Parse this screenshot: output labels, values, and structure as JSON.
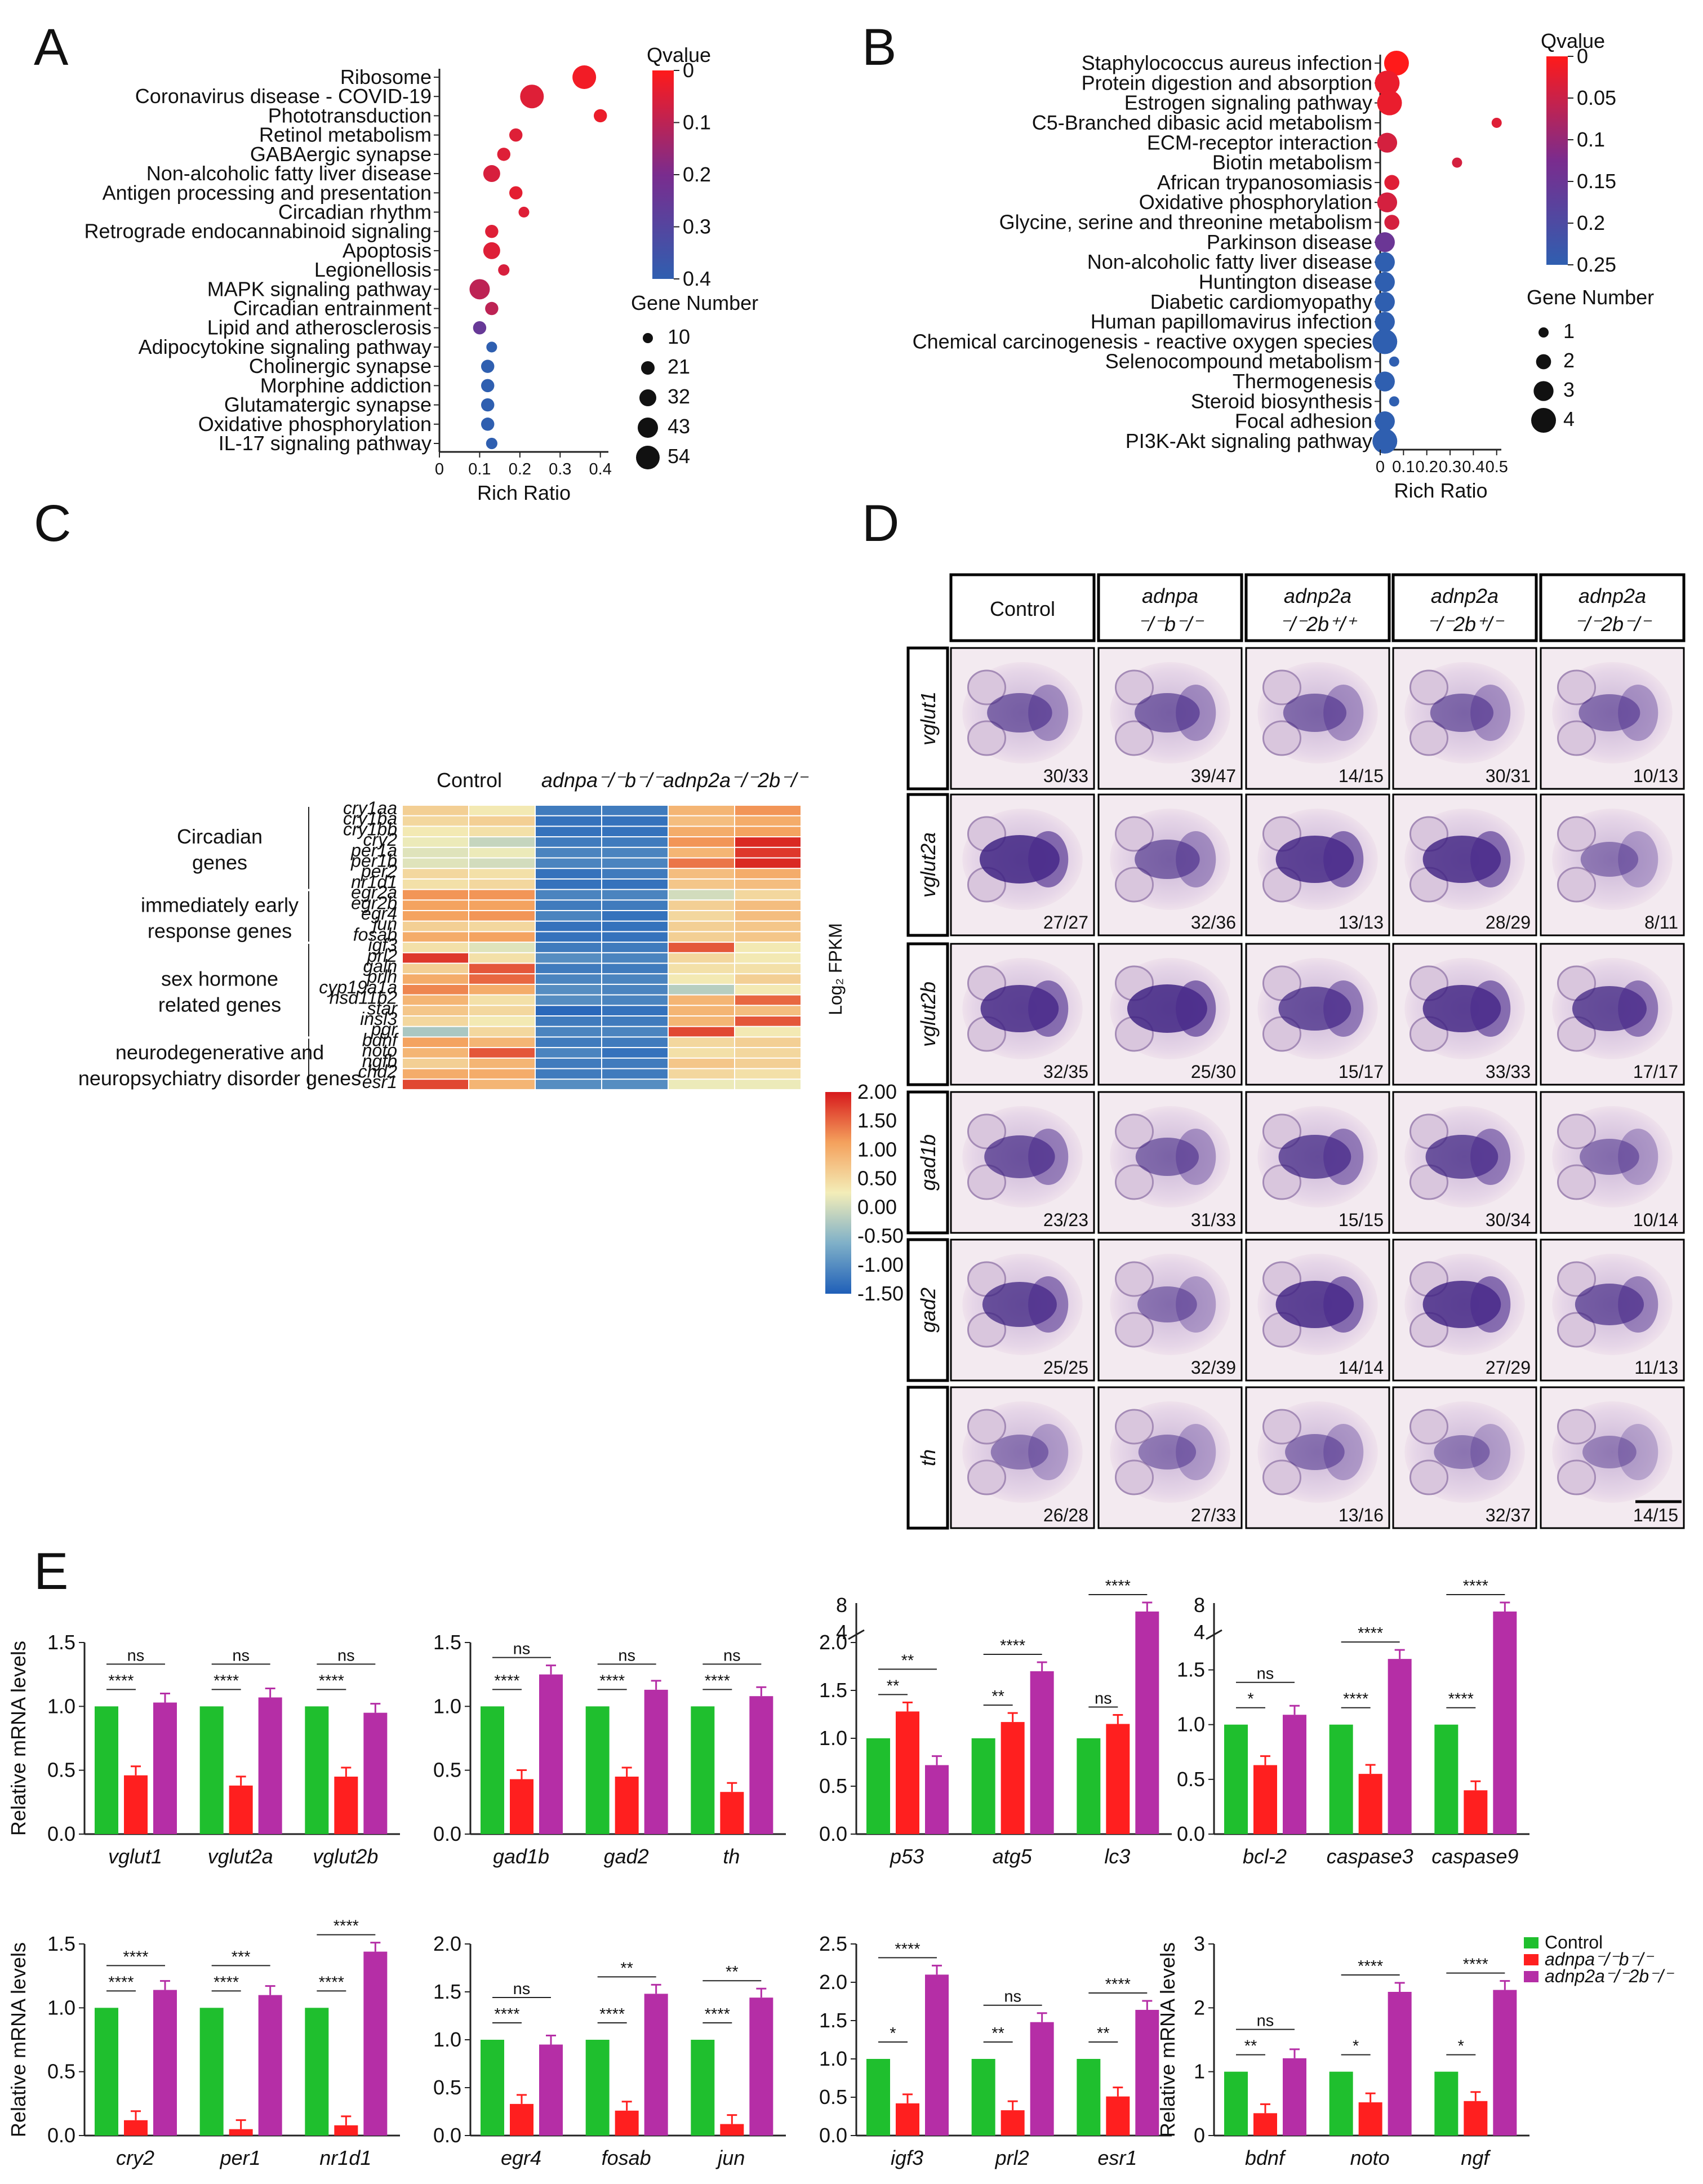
{
  "panels": {
    "A": "A",
    "B": "B",
    "C": "C",
    "D": "D",
    "E": "E"
  },
  "colors": {
    "control": "#1fbf2e",
    "adnpa": "#ff1f1f",
    "adnp2a": "#b52ea6",
    "q_low": "#ff1a1a",
    "q_mid": "#7a2c8e",
    "q_high": "#2f5fb0"
  },
  "panelA": {
    "terms": [
      "Ribosome",
      "Coronavirus disease - COVID-19",
      "Phototransduction",
      "Retinol metabolism",
      "GABAergic synapse",
      "Non-alcoholic fatty liver disease",
      "Antigen processing and presentation",
      "Circadian rhythm",
      "Retrograde endocannabinoid signaling",
      "Apoptosis",
      "Legionellosis",
      "MAPK signaling pathway",
      "Circadian entrainment",
      "Lipid and atherosclerosis",
      "Adipocytokine signaling pathway",
      "Cholinergic synapse",
      "Morphine addiction",
      "Glutamatergic synapse",
      "Oxidative phosphorylation",
      "IL-17 signaling pathway"
    ],
    "rich": [
      0.36,
      0.23,
      0.4,
      0.19,
      0.16,
      0.13,
      0.19,
      0.21,
      0.13,
      0.13,
      0.16,
      0.1,
      0.13,
      0.1,
      0.13,
      0.12,
      0.12,
      0.12,
      0.12,
      0.13
    ],
    "q": [
      0.02,
      0.05,
      0.03,
      0.05,
      0.05,
      0.06,
      0.04,
      0.05,
      0.05,
      0.05,
      0.06,
      0.1,
      0.1,
      0.25,
      0.4,
      0.4,
      0.4,
      0.4,
      0.4,
      0.4
    ],
    "genes": [
      54,
      54,
      20,
      20,
      20,
      32,
      20,
      12,
      20,
      32,
      14,
      43,
      20,
      20,
      12,
      20,
      20,
      20,
      20,
      14
    ],
    "xticks": [
      "0",
      "0.1",
      "0.2",
      "0.3",
      "0.4"
    ],
    "xlabel": "Rich Ratio",
    "qtitle": "Qvalue",
    "qticks": [
      "0",
      "0.1",
      "0.2",
      "0.3",
      "0.4"
    ],
    "gtitle": "Gene Number",
    "gticks": [
      "10",
      "21",
      "32",
      "43",
      "54"
    ]
  },
  "panelB": {
    "terms": [
      "Staphylococcus aureus infection",
      "Protein digestion and absorption",
      "Estrogen signaling pathway",
      "C5-Branched dibasic acid metabolism",
      "ECM-receptor interaction",
      "Biotin metabolism",
      "African trypanosomiasis",
      "Oxidative phosphorylation",
      "Glycine, serine and threonine metabolism",
      "Parkinson disease",
      "Non-alcoholic fatty liver disease",
      "Huntington disease",
      "Diabetic cardiomyopathy",
      "Human papillomavirus infection",
      "Chemical carcinogenesis - reactive oxygen species",
      "Selenocompound metabolism",
      "Thermogenesis",
      "Steroid biosynthesis",
      "Focal adhesion",
      "PI3K-Akt signaling pathway"
    ],
    "rich": [
      0.07,
      0.03,
      0.04,
      0.5,
      0.03,
      0.33,
      0.05,
      0.03,
      0.05,
      0.02,
      0.02,
      0.02,
      0.02,
      0.02,
      0.02,
      0.06,
      0.02,
      0.06,
      0.02,
      0.02
    ],
    "q": [
      0.0,
      0.02,
      0.02,
      0.03,
      0.04,
      0.04,
      0.03,
      0.04,
      0.04,
      0.15,
      0.25,
      0.25,
      0.25,
      0.25,
      0.25,
      0.25,
      0.25,
      0.25,
      0.25,
      0.25
    ],
    "genes": [
      4,
      4,
      4,
      1,
      3,
      1,
      2,
      3,
      2,
      3,
      3,
      3,
      3,
      3,
      4,
      1,
      3,
      1,
      3,
      4
    ],
    "xticks": [
      "0",
      "0.1",
      "0.2",
      "0.3",
      "0.4",
      "0.5"
    ],
    "xlabel": "Rich Ratio",
    "qtitle": "Qvalue",
    "qticks": [
      "0",
      "0.05",
      "0.1",
      "0.15",
      "0.2",
      "0.25"
    ],
    "gtitle": "Gene Number",
    "gticks": [
      "1",
      "2",
      "3",
      "4"
    ]
  },
  "panelC": {
    "col_groups": [
      "Control",
      "adnpa⁻/⁻b⁻/⁻",
      "adnp2a⁻/⁻2b⁻/⁻"
    ],
    "genes": [
      "cry1aa",
      "cry1ba",
      "cry1bb",
      "cry2",
      "per1a",
      "per1b",
      "per2",
      "nr1d1",
      "egr2a",
      "egr2b",
      "egr4",
      "jun",
      "fosab",
      "igf3",
      "prl2",
      "galn",
      "prlh",
      "cyp19a1a",
      "hsd11b2",
      "star",
      "insl3",
      "pgr",
      "bdnf",
      "noto",
      "ngfb",
      "chd2",
      "esr1"
    ],
    "groups": [
      {
        "label1": "Circadian",
        "label2": "genes",
        "from": 0,
        "to": 7
      },
      {
        "label1": "immediately early",
        "label2": "response genes",
        "from": 8,
        "to": 12
      },
      {
        "label1": "sex hormone",
        "label2": "related genes",
        "from": 13,
        "to": 21
      },
      {
        "label1": "neurodegenerative and",
        "label2": "neuropsychiatry disorder genes",
        "from": 22,
        "to": 26
      }
    ],
    "values": [
      [
        0.6,
        0.3,
        -1.2,
        -1.2,
        0.9,
        1.2
      ],
      [
        0.5,
        0.6,
        -1.3,
        -1.3,
        0.8,
        1.0
      ],
      [
        0.3,
        0.4,
        -1.3,
        -1.3,
        1.0,
        1.1
      ],
      [
        0.2,
        -0.1,
        -1.2,
        -1.2,
        1.2,
        1.9
      ],
      [
        0.1,
        0.2,
        -1.1,
        -1.1,
        0.9,
        1.8
      ],
      [
        0.1,
        0.0,
        -1.1,
        -1.1,
        1.4,
        1.9
      ],
      [
        0.5,
        0.4,
        -1.3,
        -1.2,
        0.8,
        1.0
      ],
      [
        0.4,
        0.5,
        -1.3,
        -1.3,
        0.7,
        0.8
      ],
      [
        1.2,
        1.2,
        -1.1,
        -1.1,
        0.0,
        0.5
      ],
      [
        1.1,
        1.1,
        -1.2,
        -1.2,
        0.6,
        0.8
      ],
      [
        1.1,
        1.2,
        -1.1,
        -1.3,
        0.5,
        0.8
      ],
      [
        0.6,
        0.5,
        -1.3,
        -1.3,
        0.6,
        0.7
      ],
      [
        1.0,
        1.1,
        -1.3,
        -1.3,
        0.6,
        0.7
      ],
      [
        0.4,
        0.1,
        -1.2,
        -1.2,
        1.6,
        0.3
      ],
      [
        1.8,
        0.4,
        -1.0,
        -1.1,
        0.5,
        0.3
      ],
      [
        0.6,
        1.6,
        -1.2,
        -1.2,
        0.4,
        0.4
      ],
      [
        1.0,
        1.5,
        -1.1,
        -1.1,
        0.3,
        0.6
      ],
      [
        1.3,
        1.0,
        -1.0,
        -1.1,
        -0.2,
        0.3
      ],
      [
        0.9,
        0.4,
        -1.0,
        -1.1,
        0.9,
        1.5
      ],
      [
        0.7,
        0.5,
        -1.4,
        -1.3,
        0.9,
        0.8
      ],
      [
        0.5,
        0.3,
        -1.2,
        -1.2,
        0.9,
        1.6
      ],
      [
        -0.3,
        0.5,
        -1.1,
        -1.1,
        1.7,
        0.3
      ],
      [
        1.1,
        0.9,
        -1.2,
        -1.2,
        0.5,
        0.6
      ],
      [
        0.9,
        1.6,
        -1.1,
        -1.3,
        0.4,
        0.5
      ],
      [
        0.6,
        0.9,
        -1.2,
        -1.2,
        0.7,
        0.6
      ],
      [
        1.0,
        1.0,
        -1.2,
        -1.2,
        0.5,
        0.4
      ],
      [
        1.7,
        0.9,
        -1.0,
        -1.0,
        0.2,
        0.2
      ]
    ],
    "cbar_title": "Log₂ FPKM",
    "cbar_ticks": [
      "2.00",
      "1.50",
      "1.00",
      "0.50",
      "0.00",
      "-0.50",
      "-1.00",
      "-1.50"
    ]
  },
  "panelD": {
    "col_headers": [
      {
        "l1": "Control",
        "l2": ""
      },
      {
        "l1": "adnpa",
        "l2": "⁻/⁻b⁻/⁻"
      },
      {
        "l1": "adnp2a",
        "l2": "⁻/⁻2b⁺/⁺"
      },
      {
        "l1": "adnp2a",
        "l2": "⁻/⁻2b⁺/⁻"
      },
      {
        "l1": "adnp2a",
        "l2": "⁻/⁻2b⁻/⁻"
      }
    ],
    "rows": [
      {
        "gene": "vglut1",
        "counts": [
          "30/33",
          "39/47",
          "14/15",
          "30/31",
          "10/13"
        ],
        "intensity": [
          0.55,
          0.55,
          0.5,
          0.5,
          0.45
        ]
      },
      {
        "gene": "vglut2a",
        "counts": [
          "27/27",
          "32/36",
          "13/13",
          "28/29",
          "8/11"
        ],
        "intensity": [
          0.95,
          0.55,
          0.9,
          0.9,
          0.35
        ]
      },
      {
        "gene": "vglut2b",
        "counts": [
          "32/35",
          "25/30",
          "15/17",
          "33/33",
          "17/17"
        ],
        "intensity": [
          0.9,
          0.95,
          0.75,
          0.9,
          0.8
        ]
      },
      {
        "gene": "gad1b",
        "counts": [
          "23/23",
          "31/33",
          "15/15",
          "30/34",
          "10/14"
        ],
        "intensity": [
          0.7,
          0.5,
          0.75,
          0.75,
          0.4
        ]
      },
      {
        "gene": "gad2",
        "counts": [
          "25/25",
          "32/39",
          "14/14",
          "27/29",
          "11/13"
        ],
        "intensity": [
          0.8,
          0.4,
          0.9,
          0.9,
          0.65
        ]
      },
      {
        "gene": "th",
        "counts": [
          "26/28",
          "27/33",
          "13/16",
          "32/37",
          "14/15"
        ],
        "intensity": [
          0.35,
          0.35,
          0.4,
          0.3,
          0.25
        ]
      }
    ]
  },
  "panelE": {
    "ylabel": "Relative mRNA levels",
    "legend": [
      "Control",
      "adnpa⁻/⁻b⁻/⁻",
      "adnp2a⁻/⁻2b⁻/⁻"
    ],
    "charts": [
      {
        "genes": [
          "vglut1",
          "vglut2a",
          "vglut2b"
        ],
        "values": [
          [
            1,
            0.46,
            1.03
          ],
          [
            1,
            0.38,
            1.07
          ],
          [
            1,
            0.45,
            0.95
          ]
        ],
        "ylim": [
          0,
          1.5
        ],
        "yticks": [
          "0.0",
          "0.5",
          "1.0",
          "1.5"
        ],
        "sig": [
          [
            "****",
            "ns"
          ],
          [
            "****",
            "ns"
          ],
          [
            "****",
            "ns"
          ]
        ]
      },
      {
        "genes": [
          "gad1b",
          "gad2",
          "th"
        ],
        "values": [
          [
            1,
            0.43,
            1.25
          ],
          [
            1,
            0.45,
            1.13
          ],
          [
            1,
            0.33,
            1.08
          ]
        ],
        "ylim": [
          0,
          1.5
        ],
        "yticks": [
          "0.0",
          "0.5",
          "1.0",
          "1.5"
        ],
        "sig": [
          [
            "****",
            "ns"
          ],
          [
            "****",
            "ns"
          ],
          [
            "****",
            "ns"
          ]
        ]
      },
      {
        "genes": [
          "p53",
          "atg5",
          "lc3"
        ],
        "values": [
          [
            1,
            1.28,
            0.72
          ],
          [
            1,
            1.17,
            1.7
          ],
          [
            1,
            1.15,
            6.2
          ]
        ],
        "ylim": [
          0,
          2.0
        ],
        "yticks": [
          "0.0",
          "0.5",
          "1.0",
          "1.5",
          "2.0"
        ],
        "break_ticks": [
          "4",
          "8"
        ],
        "sig": [
          [
            "**",
            "**"
          ],
          [
            "**",
            "****"
          ],
          [
            "ns",
            "****"
          ]
        ]
      },
      {
        "genes": [
          "bcl-2",
          "caspase3",
          "caspase9"
        ],
        "values": [
          [
            1,
            0.63,
            1.09
          ],
          [
            1,
            0.55,
            1.6
          ],
          [
            1,
            0.4,
            6.5
          ]
        ],
        "ylim": [
          0,
          1.75
        ],
        "yticks": [
          "0.0",
          "0.5",
          "1.0",
          "1.5"
        ],
        "break_ticks": [
          "4",
          "8"
        ],
        "sig": [
          [
            "*",
            "ns"
          ],
          [
            "****",
            "****"
          ],
          [
            "****",
            "****"
          ]
        ]
      },
      {
        "genes": [
          "cry2",
          "per1",
          "nr1d1"
        ],
        "values": [
          [
            1,
            0.12,
            1.14
          ],
          [
            1,
            0.05,
            1.1
          ],
          [
            1,
            0.08,
            1.44
          ]
        ],
        "ylim": [
          0,
          1.5
        ],
        "yticks": [
          "0.0",
          "0.5",
          "1.0",
          "1.5"
        ],
        "sig": [
          [
            "****",
            "****"
          ],
          [
            "****",
            "***"
          ],
          [
            "****",
            "****"
          ]
        ]
      },
      {
        "genes": [
          "egr4",
          "fosab",
          "jun"
        ],
        "values": [
          [
            1,
            0.33,
            0.95
          ],
          [
            1,
            0.26,
            1.48
          ],
          [
            1,
            0.12,
            1.44
          ]
        ],
        "ylim": [
          0,
          2.0
        ],
        "yticks": [
          "0.0",
          "0.5",
          "1.0",
          "1.5",
          "2.0"
        ],
        "sig": [
          [
            "****",
            "ns"
          ],
          [
            "****",
            "**"
          ],
          [
            "****",
            "**"
          ]
        ]
      },
      {
        "genes": [
          "igf3",
          "prl2",
          "esr1"
        ],
        "values": [
          [
            1,
            0.42,
            2.1
          ],
          [
            1,
            0.33,
            1.48
          ],
          [
            1,
            0.51,
            1.64
          ]
        ],
        "ylim": [
          0,
          2.5
        ],
        "yticks": [
          "0.0",
          "0.5",
          "1.0",
          "1.5",
          "2.0",
          "2.5"
        ],
        "sig": [
          [
            "*",
            "****"
          ],
          [
            "**",
            "ns"
          ],
          [
            "**",
            "****"
          ]
        ]
      },
      {
        "genes": [
          "bdnf",
          "noto",
          "ngf"
        ],
        "values": [
          [
            1,
            0.35,
            1.21
          ],
          [
            1,
            0.52,
            2.25
          ],
          [
            1,
            0.54,
            2.28
          ]
        ],
        "ylim": [
          0,
          3
        ],
        "yticks": [
          "0",
          "1",
          "2",
          "3"
        ],
        "sig": [
          [
            "**",
            "ns"
          ],
          [
            "*",
            "****"
          ],
          [
            "*",
            "****"
          ]
        ]
      }
    ]
  }
}
